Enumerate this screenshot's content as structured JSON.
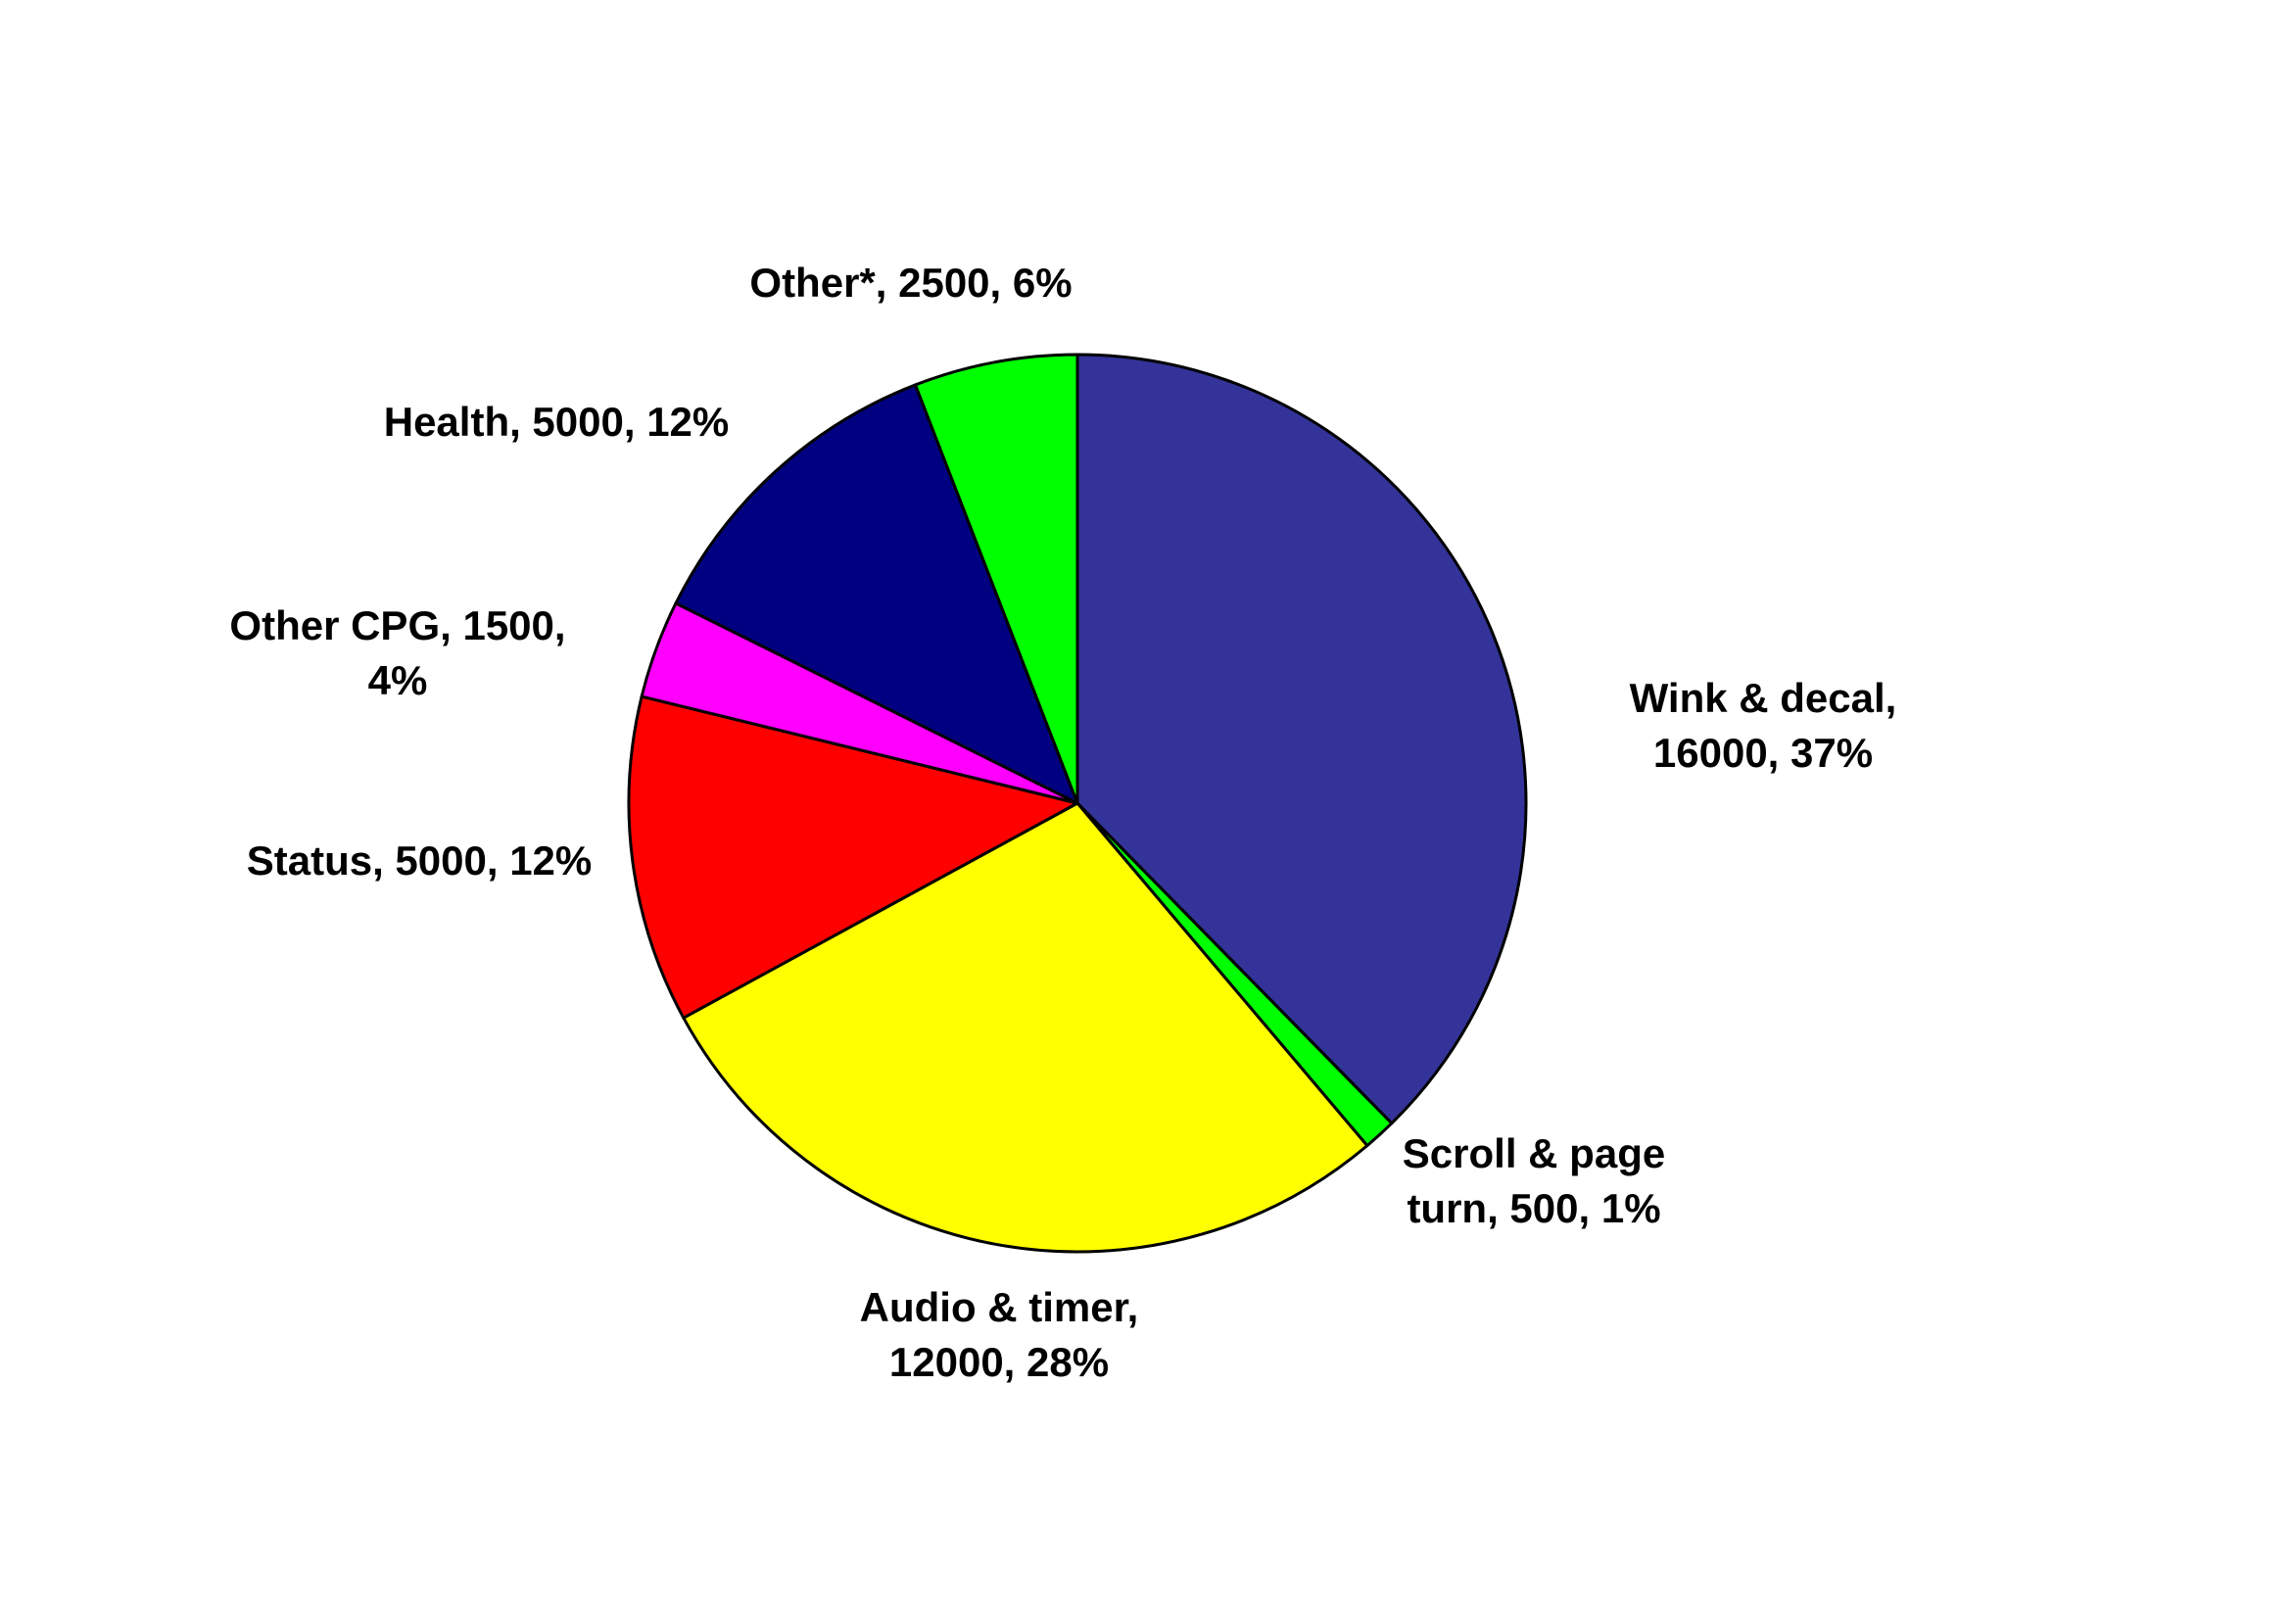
{
  "chart_data": {
    "type": "pie",
    "title": "",
    "slices": [
      {
        "name": "Wink & decal",
        "value": 16000,
        "percent": 37,
        "color": "#333399",
        "label_lines": [
          "Wink & decal,",
          "16000, 37%"
        ]
      },
      {
        "name": "Scroll & page turn",
        "value": 500,
        "percent": 1,
        "color": "#00ff00",
        "label_lines": [
          "Scroll & page",
          "turn, 500, 1%"
        ]
      },
      {
        "name": "Audio & timer",
        "value": 12000,
        "percent": 28,
        "color": "#ffff00",
        "label_lines": [
          "Audio & timer,",
          "12000, 28%"
        ]
      },
      {
        "name": "Status",
        "value": 5000,
        "percent": 12,
        "color": "#ff0000",
        "label_lines": [
          "Status, 5000, 12%"
        ]
      },
      {
        "name": "Other CPG",
        "value": 1500,
        "percent": 4,
        "color": "#ff00ff",
        "label_lines": [
          "Other CPG, 1500,",
          "4%"
        ]
      },
      {
        "name": "Health",
        "value": 5000,
        "percent": 12,
        "color": "#000080",
        "label_lines": [
          "Health, 5000, 12%"
        ]
      },
      {
        "name": "Other*",
        "value": 2500,
        "percent": 6,
        "color": "#00ff00",
        "label_lines": [
          "Other*, 2500, 6%"
        ]
      }
    ]
  }
}
